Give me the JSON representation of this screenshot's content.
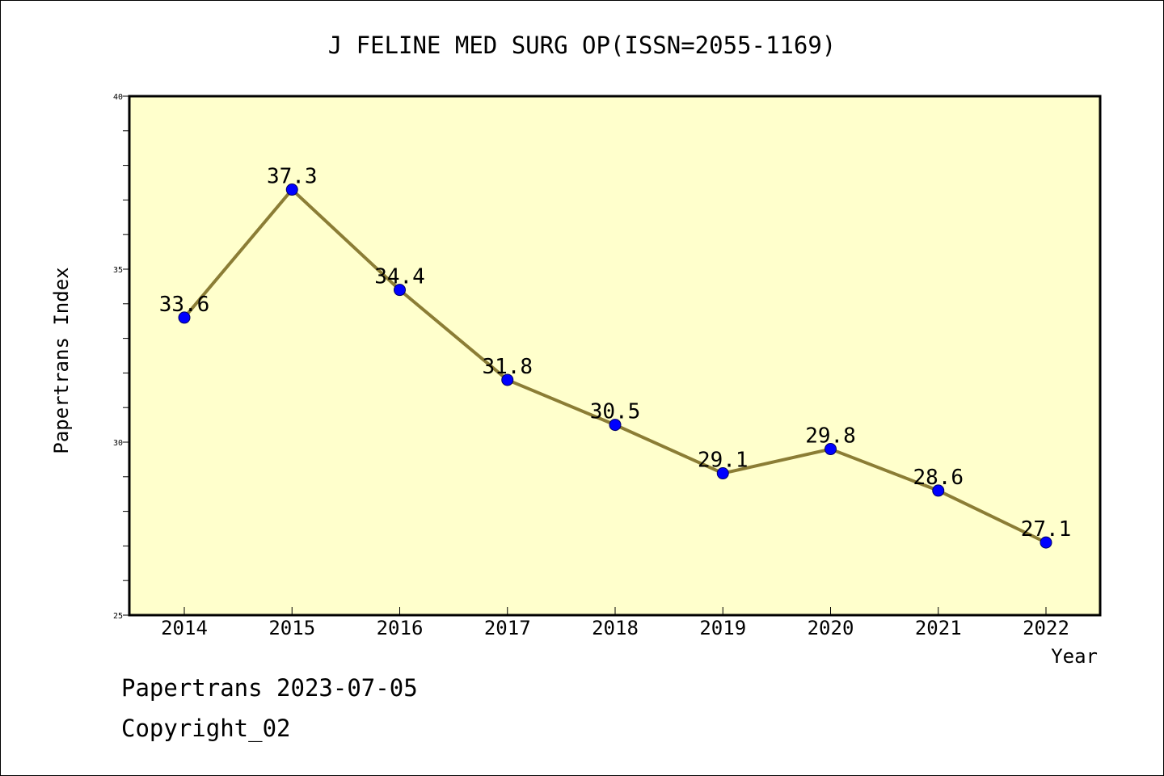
{
  "colors": {
    "plot_background": "#ffffcc",
    "line": "#8b7d35",
    "marker": "#0000ff",
    "axis": "#000000"
  },
  "footer": {
    "line1": "Papertrans 2023-07-05",
    "line2": "Copyright_02"
  },
  "chart_data": {
    "type": "line",
    "title": "J FELINE MED SURG OP(ISSN=2055-1169)",
    "xlabel": "Year",
    "ylabel": "Papertrans Index",
    "x": [
      "2014",
      "2015",
      "2016",
      "2017",
      "2018",
      "2019",
      "2020",
      "2021",
      "2022"
    ],
    "series": [
      {
        "values": [
          33.6,
          37.3,
          34.4,
          31.8,
          30.5,
          29.1,
          29.8,
          28.6,
          27.1
        ],
        "labels": [
          "33.6",
          "37.3",
          "34.4",
          "31.8",
          "30.5",
          "29.1",
          "29.8",
          "28.6",
          "27.1"
        ]
      }
    ],
    "ylim": [
      25,
      40
    ],
    "yticks": [
      "25",
      "30",
      "35",
      "40"
    ],
    "grid": false,
    "legend": "none"
  }
}
